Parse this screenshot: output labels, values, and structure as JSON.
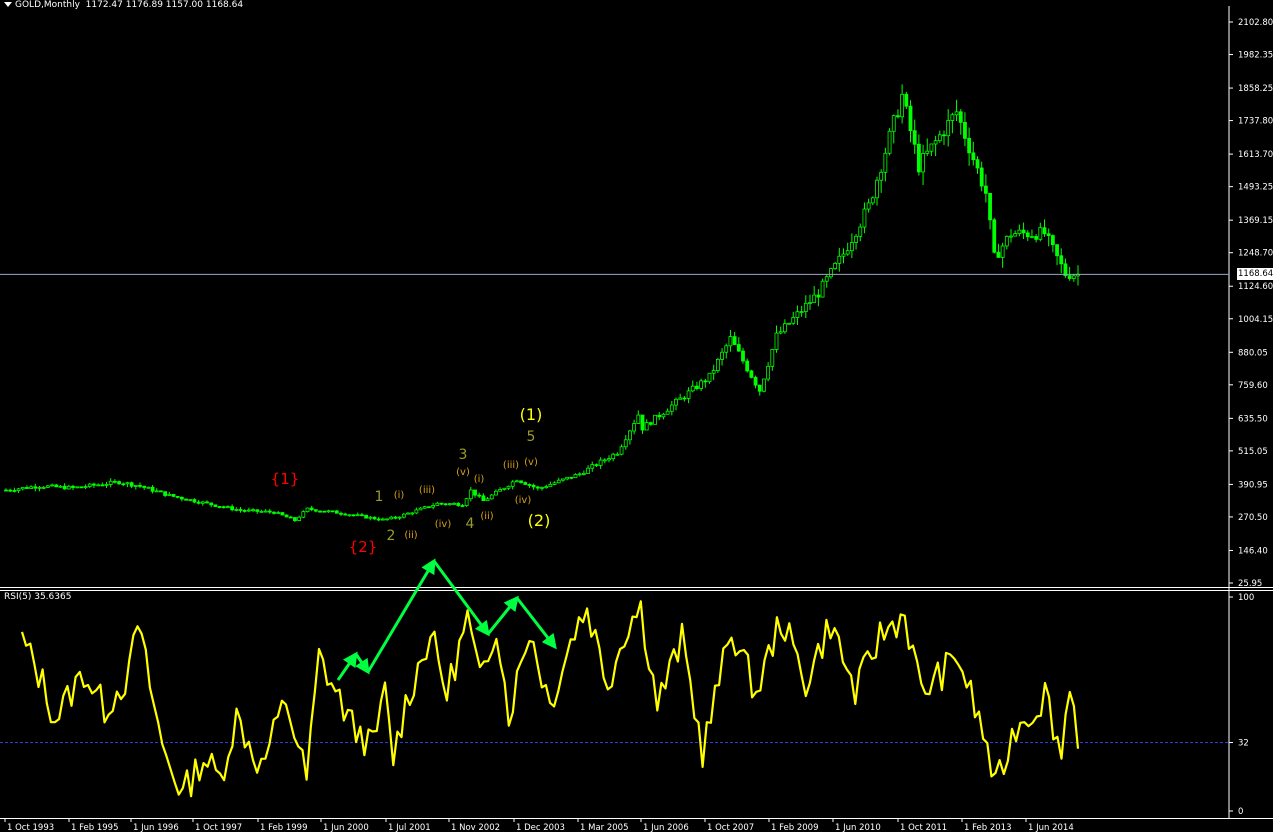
{
  "header": {
    "symbol": "GOLD,Monthly",
    "ohlc": "1172.47 1176.89 1157.00 1168.64"
  },
  "rsi_header": "RSI(5) 35.6365",
  "last_price_label": "1168.64",
  "colors": {
    "background": "#000000",
    "candles": "#00ff00",
    "axis": "#ffffff",
    "rsi_line": "#ffff00",
    "rsi_level": "#2b3fe0",
    "price_line": "#9aa7c8",
    "wave_red": "#ff0000",
    "wave_yellow": "#ffff00",
    "wave_olive": "#9b9b2a",
    "wave_orange": "#d4a017",
    "annotation_arrow": "#00ff40"
  },
  "chart_data": [
    {
      "type": "candlestick",
      "title": "GOLD,Monthly",
      "price_ticks": [
        "2102.80",
        "1982.35",
        "1858.25",
        "1737.80",
        "1613.70",
        "1493.25",
        "1369.15",
        "1248.70",
        "1124.60",
        "1004.15",
        "880.05",
        "759.60",
        "635.50",
        "515.05",
        "390.95",
        "270.50",
        "146.40",
        "25.95"
      ],
      "x_ticks": [
        "1 Oct 1993",
        "1 Feb 1995",
        "1 Jun 1996",
        "1 Oct 1997",
        "1 Feb 1999",
        "1 Jun 2000",
        "1 Jul 2001",
        "1 Nov 2002",
        "1 Dec 2003",
        "1 Mar 2005",
        "1 Jun 2006",
        "1 Oct 2007",
        "1 Feb 2009",
        "1 Jun 2010",
        "1 Oct 2011",
        "1 Feb 2013",
        "1 Jun 2014"
      ],
      "last_price": 1168.64,
      "approx_close_path": [
        {
          "date": "1993-10",
          "close": 370
        },
        {
          "date": "1994-06",
          "close": 385
        },
        {
          "date": "1995-02",
          "close": 378
        },
        {
          "date": "1996-01",
          "close": 400
        },
        {
          "date": "1996-06",
          "close": 385
        },
        {
          "date": "1997-01",
          "close": 350
        },
        {
          "date": "1997-10",
          "close": 320
        },
        {
          "date": "1998-06",
          "close": 295
        },
        {
          "date": "1999-02",
          "close": 288
        },
        {
          "date": "1999-07",
          "close": 258
        },
        {
          "date": "1999-10",
          "close": 300
        },
        {
          "date": "2000-06",
          "close": 285
        },
        {
          "date": "2001-04",
          "close": 260
        },
        {
          "date": "2001-07",
          "close": 268
        },
        {
          "date": "2002-05",
          "close": 320
        },
        {
          "date": "2002-11",
          "close": 318
        },
        {
          "date": "2003-01",
          "close": 368
        },
        {
          "date": "2003-04",
          "close": 330
        },
        {
          "date": "2003-12",
          "close": 410
        },
        {
          "date": "2004-05",
          "close": 375
        },
        {
          "date": "2005-03",
          "close": 430
        },
        {
          "date": "2005-12",
          "close": 510
        },
        {
          "date": "2006-05",
          "close": 650
        },
        {
          "date": "2006-06",
          "close": 600
        },
        {
          "date": "2007-10",
          "close": 790
        },
        {
          "date": "2008-03",
          "close": 930
        },
        {
          "date": "2008-10",
          "close": 740
        },
        {
          "date": "2009-02",
          "close": 940
        },
        {
          "date": "2009-12",
          "close": 1100
        },
        {
          "date": "2010-06",
          "close": 1245
        },
        {
          "date": "2010-12",
          "close": 1420
        },
        {
          "date": "2011-08",
          "close": 1830
        },
        {
          "date": "2011-12",
          "close": 1570
        },
        {
          "date": "2012-09",
          "close": 1770
        },
        {
          "date": "2013-04",
          "close": 1470
        },
        {
          "date": "2013-06",
          "close": 1230
        },
        {
          "date": "2013-10",
          "close": 1320
        },
        {
          "date": "2014-06",
          "close": 1320
        },
        {
          "date": "2014-11",
          "close": 1170
        },
        {
          "date": "2015-02",
          "close": 1168.64
        }
      ],
      "current_price_line": 1168.64,
      "wave_labels": [
        {
          "text": "{1}",
          "color": "red"
        },
        {
          "text": "{2}",
          "color": "red"
        },
        {
          "text": "1",
          "color": "olive"
        },
        {
          "text": "2",
          "color": "olive"
        },
        {
          "text": "3",
          "color": "olive"
        },
        {
          "text": "4",
          "color": "olive"
        },
        {
          "text": "5",
          "color": "olive"
        },
        {
          "text": "(1)",
          "color": "yellow"
        },
        {
          "text": "(2)",
          "color": "yellow"
        },
        {
          "text": "(i)",
          "color": "orange"
        },
        {
          "text": "(ii)",
          "color": "orange"
        },
        {
          "text": "(iii)",
          "color": "orange"
        },
        {
          "text": "(iv)",
          "color": "orange"
        },
        {
          "text": "(v)",
          "color": "orange"
        },
        {
          "text": "(i)",
          "color": "orange"
        },
        {
          "text": "(ii)",
          "color": "orange"
        },
        {
          "text": "(iii)",
          "color": "orange"
        },
        {
          "text": "(iv)",
          "color": "orange"
        },
        {
          "text": "(v)",
          "color": "orange"
        }
      ]
    },
    {
      "type": "line",
      "title": "RSI(5) 35.6365",
      "y_ticks": [
        "100",
        "32",
        "0"
      ],
      "level_line": 32,
      "ylim": [
        0,
        100
      ],
      "last_value": 35.6365,
      "approx_values": [
        {
          "date": "1993-10",
          "v": 80
        },
        {
          "date": "1994-03",
          "v": 60
        },
        {
          "date": "1994-06",
          "v": 43
        },
        {
          "date": "1995-01",
          "v": 65
        },
        {
          "date": "1995-06",
          "v": 48
        },
        {
          "date": "1995-12",
          "v": 64
        },
        {
          "date": "1996-02",
          "v": 88
        },
        {
          "date": "1996-08",
          "v": 30
        },
        {
          "date": "1997-01",
          "v": 8
        },
        {
          "date": "1997-06",
          "v": 25
        },
        {
          "date": "1997-10",
          "v": 15
        },
        {
          "date": "1998-02",
          "v": 44
        },
        {
          "date": "1998-08",
          "v": 20
        },
        {
          "date": "1999-02",
          "v": 52
        },
        {
          "date": "1999-07",
          "v": 15
        },
        {
          "date": "1999-10",
          "v": 72
        },
        {
          "date": "2000-06",
          "v": 40
        },
        {
          "date": "2000-11",
          "v": 30
        },
        {
          "date": "2001-02",
          "v": 55
        },
        {
          "date": "2001-04",
          "v": 25
        },
        {
          "date": "2001-07",
          "v": 50
        },
        {
          "date": "2002-01",
          "v": 83
        },
        {
          "date": "2002-05",
          "v": 55
        },
        {
          "date": "2002-10",
          "v": 90
        },
        {
          "date": "2003-01",
          "v": 60
        },
        {
          "date": "2003-05",
          "v": 88
        },
        {
          "date": "2003-08",
          "v": 45
        },
        {
          "date": "2004-01",
          "v": 85
        },
        {
          "date": "2004-06",
          "v": 50
        },
        {
          "date": "2004-12",
          "v": 85
        },
        {
          "date": "2005-03",
          "v": 95
        },
        {
          "date": "2005-08",
          "v": 60
        },
        {
          "date": "2006-01",
          "v": 88
        },
        {
          "date": "2006-04",
          "v": 95
        },
        {
          "date": "2006-08",
          "v": 50
        },
        {
          "date": "2007-02",
          "v": 80
        },
        {
          "date": "2007-07",
          "v": 28
        },
        {
          "date": "2008-02",
          "v": 85
        },
        {
          "date": "2008-08",
          "v": 55
        },
        {
          "date": "2009-02",
          "v": 90
        },
        {
          "date": "2009-08",
          "v": 60
        },
        {
          "date": "2010-02",
          "v": 88
        },
        {
          "date": "2010-08",
          "v": 55
        },
        {
          "date": "2011-02",
          "v": 82
        },
        {
          "date": "2011-08",
          "v": 92
        },
        {
          "date": "2011-12",
          "v": 55
        },
        {
          "date": "2012-09",
          "v": 72
        },
        {
          "date": "2013-04",
          "v": 30
        },
        {
          "date": "2013-06",
          "v": 10
        },
        {
          "date": "2013-11",
          "v": 40
        },
        {
          "date": "2014-04",
          "v": 48
        },
        {
          "date": "2014-06",
          "v": 56
        },
        {
          "date": "2014-10",
          "v": 26
        },
        {
          "date": "2014-12",
          "v": 62
        },
        {
          "date": "2015-02",
          "v": 35.6365
        }
      ]
    }
  ]
}
